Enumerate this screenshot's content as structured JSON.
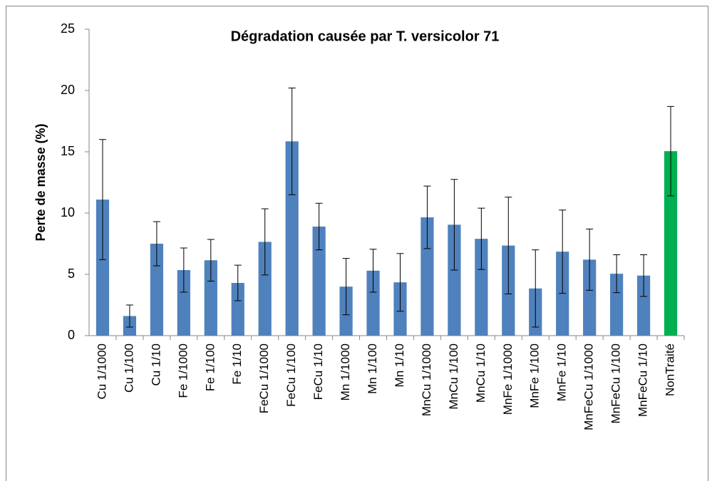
{
  "chart_data": {
    "type": "bar",
    "title": "Dégradation causée par T. versicolor 71",
    "y_label": "Perte de masse (%)",
    "categories": [
      "Cu 1/1000",
      "Cu 1/100",
      "Cu 1/10",
      "Fe 1/1000",
      "Fe 1/100",
      "Fe 1/10",
      "FeCu 1/1000",
      "FeCu 1/100",
      "FeCu 1/10",
      "Mn 1/1000",
      "Mn 1/100",
      "Mn 1/10",
      "MnCu 1/1000",
      "MnCu 1/100",
      "MnCu 1/10",
      "MnFe 1/1000",
      "MnFe 1/100",
      "MnFe 1/10",
      "MnFeCu 1/1000",
      "MnFeCu 1/100",
      "MnFeCu 1/10",
      "NonTraité"
    ],
    "values": [
      11.1,
      1.6,
      7.5,
      5.35,
      6.15,
      4.3,
      7.65,
      15.85,
      8.9,
      4.0,
      5.3,
      4.35,
      9.65,
      9.05,
      7.9,
      7.35,
      3.85,
      6.85,
      6.2,
      5.05,
      4.9,
      15.05
    ],
    "errors": [
      4.9,
      0.9,
      1.8,
      1.8,
      1.7,
      1.45,
      2.7,
      4.35,
      1.9,
      2.3,
      1.75,
      2.35,
      2.55,
      3.7,
      2.5,
      3.95,
      3.15,
      3.4,
      2.5,
      1.55,
      1.7,
      3.65
    ],
    "colors": [
      "#4f81bd",
      "#4f81bd",
      "#4f81bd",
      "#4f81bd",
      "#4f81bd",
      "#4f81bd",
      "#4f81bd",
      "#4f81bd",
      "#4f81bd",
      "#4f81bd",
      "#4f81bd",
      "#4f81bd",
      "#4f81bd",
      "#4f81bd",
      "#4f81bd",
      "#4f81bd",
      "#4f81bd",
      "#4f81bd",
      "#4f81bd",
      "#4f81bd",
      "#4f81bd",
      "#00b050"
    ],
    "ylim": [
      0,
      25
    ],
    "yticks": [
      0,
      5,
      10,
      15,
      20,
      25
    ],
    "grid": false
  }
}
